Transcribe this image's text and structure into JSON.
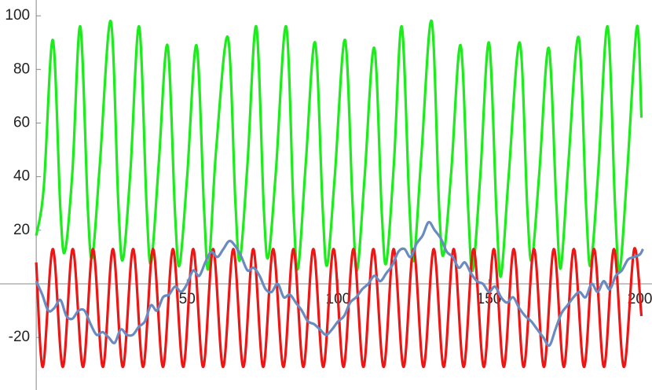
{
  "chart_data": {
    "type": "line",
    "xlim": [
      -12,
      204
    ],
    "ylim": [
      -39.6,
      105.9
    ],
    "xticks": [
      50,
      100,
      150,
      200
    ],
    "yticks": [
      -20,
      20,
      40,
      60,
      80,
      100
    ],
    "series": [
      {
        "color": "#1cec1c",
        "x": [
          0,
          2.5,
          5.5,
          8,
          9.5,
          12,
          14.6,
          17.1,
          18.6,
          21.1,
          24.7,
          27.2,
          28.7,
          31.2,
          34.1,
          36.6,
          38.1,
          40.6,
          43.5,
          46,
          47.5,
          50,
          53.1,
          55.6,
          57.1,
          59.6,
          63.5,
          66,
          67.5,
          70,
          72.9,
          75.4,
          76.9,
          79.4,
          82.8,
          85.3,
          86.8,
          89.3,
          92.4,
          94.9,
          96.4,
          98.9,
          102.3,
          104.8,
          106.3,
          108.8,
          112,
          114.5,
          116,
          118.5,
          121.1,
          123.6,
          125.1,
          127.6,
          131,
          133.5,
          135,
          137.5,
          140.6,
          143.1,
          144.6,
          147.1,
          150,
          152.5,
          154,
          156.5,
          160.2,
          162.7,
          164.2,
          166.7,
          169.8,
          172.3,
          173.8,
          176.3,
          179.7,
          182.2,
          183.7,
          186.2,
          189.3,
          191.8,
          193.3,
          195.8,
          199,
          200.5
        ],
        "values": [
          18,
          36,
          91,
          28,
          12,
          42,
          96,
          28,
          10,
          45,
          98,
          30,
          9,
          42,
          96,
          28,
          8,
          45,
          89,
          26,
          7,
          40,
          89,
          28,
          6,
          50,
          92,
          30,
          9,
          45,
          96,
          28,
          10,
          42,
          96,
          26,
          6,
          45,
          90,
          28,
          7,
          40,
          91,
          30,
          5,
          40,
          88,
          26,
          8,
          45,
          96,
          30,
          9,
          48,
          98,
          28,
          11,
          42,
          89,
          28,
          5,
          40,
          90,
          26,
          3,
          40,
          90,
          28,
          9,
          42,
          88,
          30,
          6,
          45,
          92,
          28,
          7,
          42,
          96,
          28,
          5,
          42,
          96,
          62
        ]
      },
      {
        "color": "#ee1515",
        "x": [
          0,
          2.2,
          5.5,
          8.8,
          12.1,
          15.5,
          18.8,
          22.1,
          25.4,
          28.7,
          32.1,
          35.4,
          38.7,
          42,
          45.3,
          48.7,
          52,
          55.3,
          58.6,
          61.9,
          65.3,
          68.6,
          71.9,
          75.2,
          78.5,
          81.9,
          85.2,
          88.5,
          91.8,
          95.1,
          98.5,
          101.8,
          105.1,
          108.4,
          111.7,
          115.1,
          118.4,
          121.7,
          125,
          128.3,
          131.7,
          135,
          138.3,
          141.6,
          144.9,
          148.3,
          151.6,
          154.9,
          158.2,
          161.5,
          164.9,
          168.2,
          171.5,
          174.8,
          178.1,
          181.5,
          184.8,
          188.1,
          191.4,
          194.7,
          198.1,
          200.5
        ],
        "values": [
          8,
          -31,
          13,
          -31,
          13,
          -31,
          13,
          -31,
          13,
          -31,
          13,
          -31,
          13,
          -31,
          13,
          -31,
          13,
          -31,
          13,
          -31,
          13,
          -31,
          13,
          -31,
          13,
          -31,
          13,
          -31,
          13,
          -31,
          13,
          -31,
          13,
          -31,
          13,
          -31,
          13,
          -31,
          13,
          -31,
          13,
          -31,
          13,
          -31,
          13,
          -31,
          13,
          -31,
          13,
          -31,
          13,
          -31,
          13,
          -31,
          13,
          -31,
          13,
          -31,
          13,
          -31,
          13,
          -12
        ]
      },
      {
        "color": "#6a8bc2",
        "x": [
          0,
          2,
          4,
          6,
          8,
          10,
          12,
          14,
          16,
          18,
          20,
          22,
          24,
          26,
          28,
          30,
          32,
          34,
          36,
          38,
          40,
          42,
          44,
          46,
          48,
          50,
          52,
          54,
          56,
          58,
          60,
          62,
          64,
          66,
          68,
          70,
          72,
          74,
          76,
          78,
          80,
          82,
          84,
          86,
          88,
          90,
          92,
          94,
          96,
          98,
          100,
          102,
          104,
          106,
          108,
          110,
          112,
          114,
          116,
          118,
          120,
          122,
          124,
          126,
          128,
          130,
          132,
          134,
          136,
          138,
          140,
          142,
          144,
          146,
          148,
          150,
          152,
          154,
          156,
          158,
          160,
          162,
          164,
          166,
          168,
          170,
          172,
          174,
          176,
          178,
          180,
          182,
          184,
          186,
          188,
          190,
          192,
          194,
          196,
          198,
          200,
          201
        ],
        "values": [
          1,
          -4,
          -10,
          -9,
          -6,
          -12,
          -13,
          -10,
          -10,
          -15,
          -19,
          -18,
          -20,
          -22,
          -17,
          -19,
          -19,
          -16,
          -14,
          -8,
          -10,
          -5,
          -4,
          -1,
          -3,
          0,
          5,
          3,
          8,
          12,
          10,
          13,
          16,
          14,
          10,
          5,
          6,
          3,
          -2,
          -3,
          0,
          -5,
          -4,
          -7,
          -10,
          -14,
          -15,
          -17,
          -19,
          -17,
          -14,
          -12,
          -7,
          -5,
          -2,
          0,
          3,
          1,
          4,
          7,
          12,
          13,
          10,
          15,
          18,
          23,
          20,
          17,
          12,
          10,
          6,
          8,
          4,
          1,
          0,
          -3,
          -1,
          -5,
          -7,
          -5,
          -9,
          -12,
          -14,
          -17,
          -20,
          -23,
          -17,
          -11,
          -8,
          -5,
          -3,
          -5,
          0,
          -3,
          1,
          -2,
          3,
          5,
          9,
          10,
          11,
          13
        ]
      }
    ]
  }
}
